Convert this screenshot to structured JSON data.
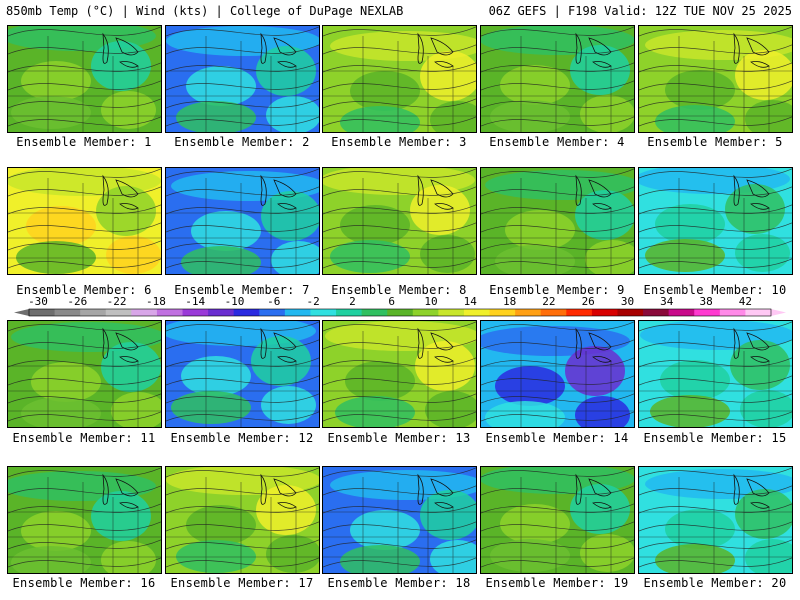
{
  "header": {
    "left": "850mb Temp (°C) | Wind (kts) | College of DuPage NEXLAB",
    "right": "06Z GEFS | F198 Valid: 12Z TUE NOV 25 2025"
  },
  "panel_caption_prefix": "Ensemble Member: ",
  "members": [
    {
      "label": "Ensemble Member: 1",
      "scheme": "green"
    },
    {
      "label": "Ensemble Member: 2",
      "scheme": "cold"
    },
    {
      "label": "Ensemble Member: 3",
      "scheme": "warm"
    },
    {
      "label": "Ensemble Member: 4",
      "scheme": "green"
    },
    {
      "label": "Ensemble Member: 5",
      "scheme": "warm"
    },
    {
      "label": "Ensemble Member: 6",
      "scheme": "hot"
    },
    {
      "label": "Ensemble Member: 7",
      "scheme": "cold"
    },
    {
      "label": "Ensemble Member: 8",
      "scheme": "warm"
    },
    {
      "label": "Ensemble Member: 9",
      "scheme": "green"
    },
    {
      "label": "Ensemble Member: 10",
      "scheme": "cool"
    },
    {
      "label": "Ensemble Member: 11",
      "scheme": "green"
    },
    {
      "label": "Ensemble Member: 12",
      "scheme": "cold"
    },
    {
      "label": "Ensemble Member: 13",
      "scheme": "warm"
    },
    {
      "label": "Ensemble Member: 14",
      "scheme": "verycold"
    },
    {
      "label": "Ensemble Member: 15",
      "scheme": "cool"
    },
    {
      "label": "Ensemble Member: 16",
      "scheme": "green"
    },
    {
      "label": "Ensemble Member: 17",
      "scheme": "warm"
    },
    {
      "label": "Ensemble Member: 18",
      "scheme": "cold"
    },
    {
      "label": "Ensemble Member: 19",
      "scheme": "green"
    },
    {
      "label": "Ensemble Member: 20",
      "scheme": "cool"
    }
  ],
  "colorbar": {
    "ticks": [
      "-30",
      "-26",
      "-22",
      "-18",
      "-14",
      "-10",
      "-6",
      "-2",
      "2",
      "6",
      "10",
      "14",
      "18",
      "22",
      "26",
      "30",
      "34",
      "38",
      "42"
    ],
    "colors": [
      "#6e6e6e",
      "#8a8a8a",
      "#a6a6a6",
      "#bfbfbf",
      "#d8a6e8",
      "#c070e0",
      "#9a3ad8",
      "#6a2ed0",
      "#2a2ae0",
      "#2a6ef0",
      "#22b8f0",
      "#30e0e0",
      "#20d0a0",
      "#30c060",
      "#5ab428",
      "#8ed22a",
      "#c8e62a",
      "#f0f02a",
      "#ffd21e",
      "#ffa014",
      "#ff6e0a",
      "#ff2a00",
      "#d80000",
      "#a80000",
      "#8a0a3a",
      "#c80a8a",
      "#ff3ad0",
      "#ff8ae8",
      "#ffc8f4"
    ]
  }
}
